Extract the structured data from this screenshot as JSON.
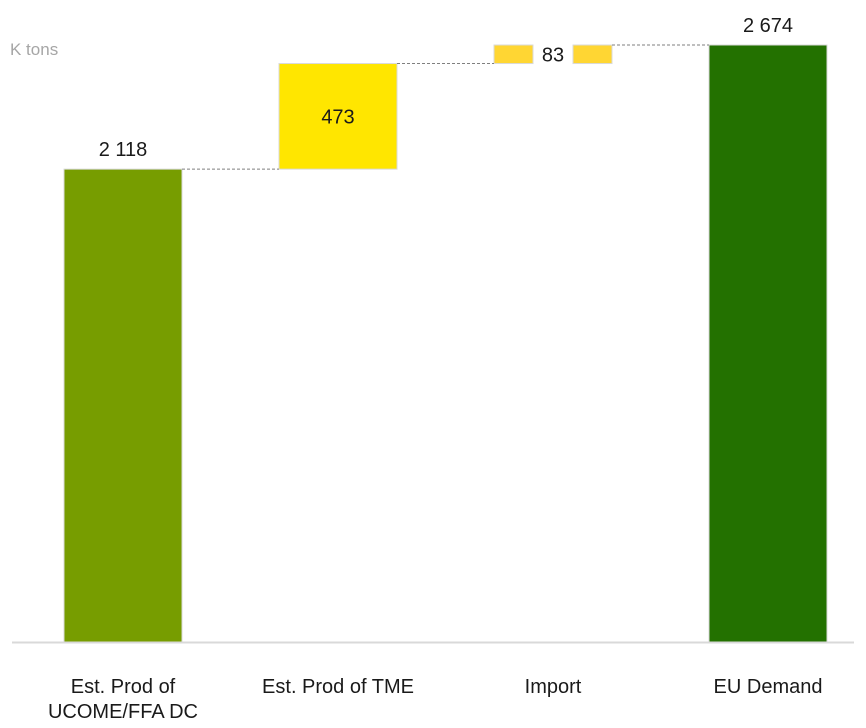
{
  "chart_data": {
    "type": "bar",
    "subtype": "waterfall",
    "unit_label": "K tons",
    "categories": [
      {
        "label": "Est. Prod of\nUCOME/FFA DC",
        "kind": "total",
        "value": 2118,
        "value_label": "2 118",
        "color": "#779d00"
      },
      {
        "label": "Est. Prod of TME",
        "kind": "increment",
        "value": 473,
        "value_label": "473",
        "color": "#ffe600"
      },
      {
        "label": "Import",
        "kind": "increment",
        "value": 83,
        "value_label": "83",
        "color": "#ffd633"
      },
      {
        "label": "EU Demand",
        "kind": "total",
        "value": 2674,
        "value_label": "2 674",
        "color": "#237100"
      }
    ],
    "ylim": [
      0,
      2674
    ],
    "grid": false,
    "connectors": "dashed"
  }
}
